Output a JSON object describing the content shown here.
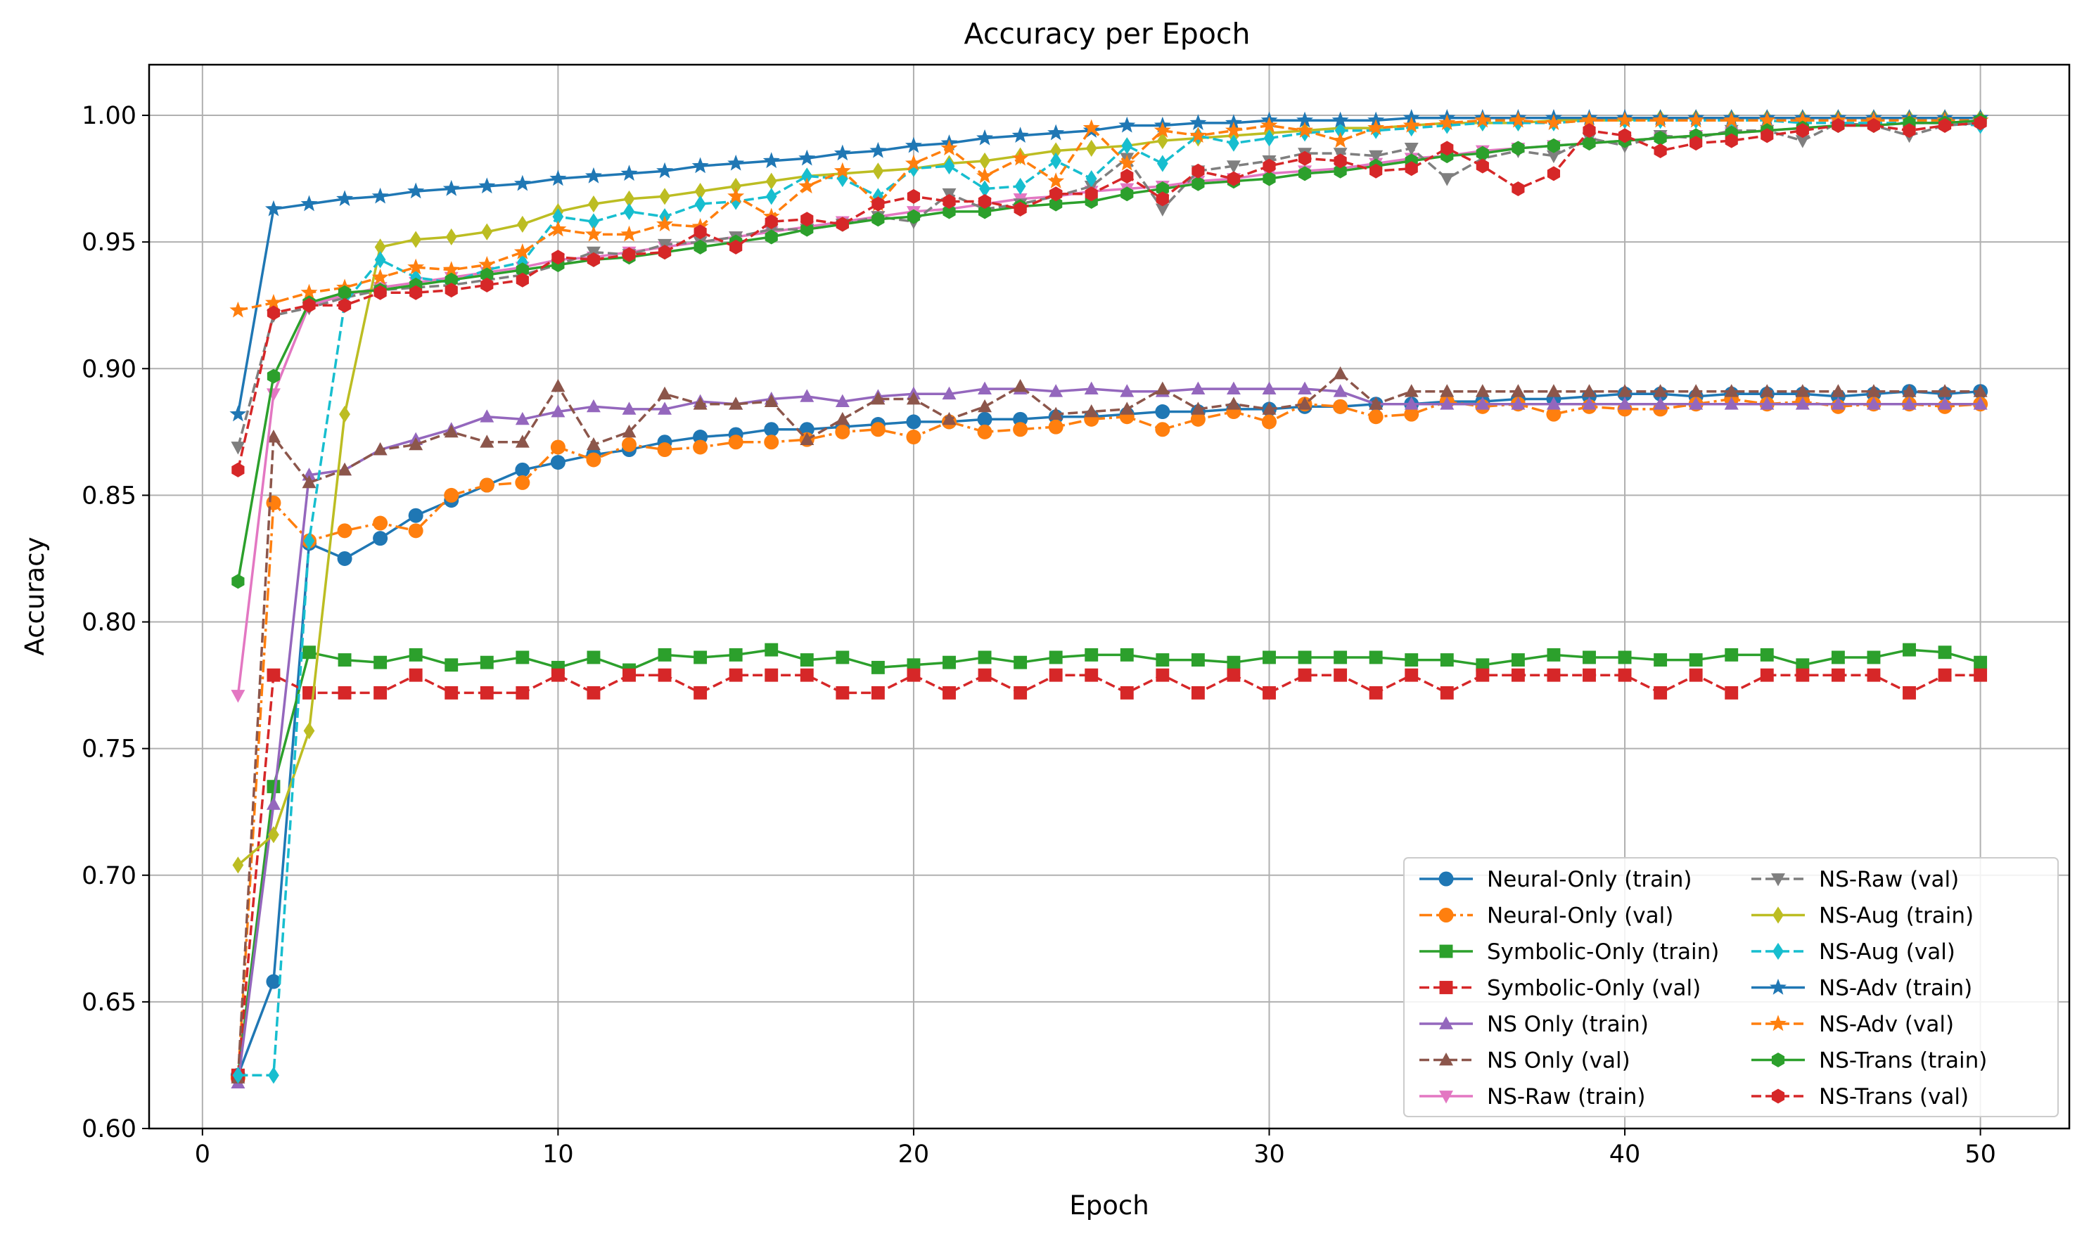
{
  "chart_data": {
    "type": "line",
    "title": "Accuracy per Epoch",
    "xlabel": "Epoch",
    "ylabel": "Accuracy",
    "xlim": [
      -1.5,
      52.5
    ],
    "ylim": [
      0.6,
      1.02
    ],
    "xticks": [
      0,
      10,
      20,
      30,
      40,
      50
    ],
    "xtick_labels": [
      "0",
      "10",
      "20",
      "30",
      "40",
      "50"
    ],
    "yticks": [
      0.6,
      0.65,
      0.7,
      0.75,
      0.8,
      0.85,
      0.9,
      0.95,
      1.0
    ],
    "ytick_labels": [
      "0.60",
      "0.65",
      "0.70",
      "0.75",
      "0.80",
      "0.85",
      "0.90",
      "0.95",
      "1.00"
    ],
    "grid": true,
    "legend_position": "lower-right",
    "x": [
      1,
      2,
      3,
      4,
      5,
      6,
      7,
      8,
      9,
      10,
      11,
      12,
      13,
      14,
      15,
      16,
      17,
      18,
      19,
      20,
      21,
      22,
      23,
      24,
      25,
      26,
      27,
      28,
      29,
      30,
      31,
      32,
      33,
      34,
      35,
      36,
      37,
      38,
      39,
      40,
      41,
      42,
      43,
      44,
      45,
      46,
      47,
      48,
      49,
      50
    ],
    "series": [
      {
        "name": "Neural-Only (train)",
        "color": "#1f77b4",
        "dash": "solid",
        "marker": "circle",
        "values": [
          0.621,
          0.658,
          0.831,
          0.825,
          0.833,
          0.842,
          0.848,
          0.854,
          0.86,
          0.863,
          0.866,
          0.868,
          0.871,
          0.873,
          0.874,
          0.876,
          0.876,
          0.877,
          0.878,
          0.879,
          0.879,
          0.88,
          0.88,
          0.881,
          0.881,
          0.882,
          0.883,
          0.883,
          0.884,
          0.884,
          0.885,
          0.885,
          0.886,
          0.886,
          0.887,
          0.887,
          0.888,
          0.888,
          0.889,
          0.89,
          0.89,
          0.889,
          0.89,
          0.89,
          0.89,
          0.889,
          0.89,
          0.891,
          0.89,
          0.891
        ]
      },
      {
        "name": "Neural-Only (val)",
        "color": "#ff7f0e",
        "dash": "dashdot",
        "marker": "circle",
        "values": [
          0.62,
          0.847,
          0.832,
          0.836,
          0.839,
          0.836,
          0.85,
          0.854,
          0.855,
          0.869,
          0.864,
          0.87,
          0.868,
          0.869,
          0.871,
          0.871,
          0.872,
          0.875,
          0.876,
          0.873,
          0.879,
          0.875,
          0.876,
          0.877,
          0.88,
          0.881,
          0.876,
          0.88,
          0.883,
          0.879,
          0.886,
          0.885,
          0.881,
          0.882,
          0.887,
          0.885,
          0.886,
          0.882,
          0.885,
          0.884,
          0.884,
          0.886,
          0.888,
          0.886,
          0.887,
          0.885,
          0.886,
          0.886,
          0.885,
          0.886
        ]
      },
      {
        "name": "Symbolic-Only (train)",
        "color": "#2ca02c",
        "dash": "solid",
        "marker": "square",
        "values": [
          0.621,
          0.735,
          0.788,
          0.785,
          0.784,
          0.787,
          0.783,
          0.784,
          0.786,
          0.782,
          0.786,
          0.781,
          0.787,
          0.786,
          0.787,
          0.789,
          0.785,
          0.786,
          0.782,
          0.783,
          0.784,
          0.786,
          0.784,
          0.786,
          0.787,
          0.787,
          0.785,
          0.785,
          0.784,
          0.786,
          0.786,
          0.786,
          0.786,
          0.785,
          0.785,
          0.783,
          0.785,
          0.787,
          0.786,
          0.786,
          0.785,
          0.785,
          0.787,
          0.787,
          0.783,
          0.786,
          0.786,
          0.789,
          0.788,
          0.784
        ]
      },
      {
        "name": "Symbolic-Only (val)",
        "color": "#d62728",
        "dash": "dashed",
        "marker": "square",
        "values": [
          0.621,
          0.779,
          0.772,
          0.772,
          0.772,
          0.779,
          0.772,
          0.772,
          0.772,
          0.779,
          0.772,
          0.779,
          0.779,
          0.772,
          0.779,
          0.779,
          0.779,
          0.772,
          0.772,
          0.779,
          0.772,
          0.779,
          0.772,
          0.779,
          0.779,
          0.772,
          0.779,
          0.772,
          0.779,
          0.772,
          0.779,
          0.779,
          0.772,
          0.779,
          0.772,
          0.779,
          0.779,
          0.779,
          0.779,
          0.779,
          0.772,
          0.779,
          0.772,
          0.779,
          0.779,
          0.779,
          0.779,
          0.772,
          0.779,
          0.779
        ]
      },
      {
        "name": "NS Only (train)",
        "color": "#9467bd",
        "dash": "solid",
        "marker": "triangle-up",
        "values": [
          0.618,
          0.728,
          0.858,
          0.86,
          0.868,
          0.872,
          0.876,
          0.881,
          0.88,
          0.883,
          0.885,
          0.884,
          0.884,
          0.887,
          0.886,
          0.888,
          0.889,
          0.887,
          0.889,
          0.89,
          0.89,
          0.892,
          0.892,
          0.891,
          0.892,
          0.891,
          0.891,
          0.892,
          0.892,
          0.892,
          0.892,
          0.891,
          0.886,
          0.886,
          0.886,
          0.886,
          0.886,
          0.886,
          0.886,
          0.886,
          0.886,
          0.886,
          0.886,
          0.886,
          0.886,
          0.886,
          0.886,
          0.886,
          0.886,
          0.886
        ]
      },
      {
        "name": "NS Only (val)",
        "color": "#8c564b",
        "dash": "dashed",
        "marker": "triangle-up",
        "values": [
          0.62,
          0.873,
          0.855,
          0.86,
          0.868,
          0.87,
          0.875,
          0.871,
          0.871,
          0.893,
          0.87,
          0.875,
          0.89,
          0.886,
          0.886,
          0.887,
          0.872,
          0.88,
          0.888,
          0.888,
          0.88,
          0.885,
          0.893,
          0.882,
          0.883,
          0.884,
          0.892,
          0.884,
          0.886,
          0.884,
          0.886,
          0.898,
          0.886,
          0.891,
          0.891,
          0.891,
          0.891,
          0.891,
          0.891,
          0.891,
          0.891,
          0.891,
          0.891,
          0.891,
          0.891,
          0.891,
          0.891,
          0.891,
          0.891,
          0.891
        ]
      },
      {
        "name": "NS-Raw (train)",
        "color": "#e377c2",
        "dash": "solid",
        "marker": "triangle-down",
        "values": [
          0.771,
          0.89,
          0.925,
          0.929,
          0.932,
          0.934,
          0.936,
          0.938,
          0.94,
          0.943,
          0.944,
          0.946,
          0.948,
          0.95,
          0.952,
          0.954,
          0.956,
          0.958,
          0.96,
          0.962,
          0.963,
          0.965,
          0.967,
          0.968,
          0.97,
          0.971,
          0.972,
          0.974,
          0.975,
          0.977,
          0.978,
          0.979,
          0.981,
          0.983,
          0.984,
          0.986,
          0.987,
          0.988,
          0.989,
          0.99,
          0.991,
          0.992,
          0.993,
          0.994,
          0.995,
          0.996,
          0.996,
          0.997,
          0.997,
          0.998
        ]
      },
      {
        "name": "NS-Raw (val)",
        "color": "#7f7f7f",
        "dash": "dashed",
        "marker": "triangle-down",
        "values": [
          0.869,
          0.921,
          0.924,
          0.928,
          0.931,
          0.932,
          0.933,
          0.935,
          0.937,
          0.941,
          0.946,
          0.945,
          0.949,
          0.95,
          0.952,
          0.955,
          0.955,
          0.957,
          0.96,
          0.958,
          0.969,
          0.963,
          0.965,
          0.968,
          0.972,
          0.983,
          0.963,
          0.978,
          0.98,
          0.982,
          0.985,
          0.985,
          0.984,
          0.987,
          0.975,
          0.983,
          0.986,
          0.984,
          0.991,
          0.988,
          0.992,
          0.991,
          0.994,
          0.994,
          0.99,
          0.997,
          0.996,
          0.992,
          0.996,
          0.997
        ]
      },
      {
        "name": "NS-Aug (train)",
        "color": "#bcbd22",
        "dash": "solid",
        "marker": "diamond",
        "values": [
          0.704,
          0.716,
          0.757,
          0.882,
          0.948,
          0.951,
          0.952,
          0.954,
          0.957,
          0.962,
          0.965,
          0.967,
          0.968,
          0.97,
          0.972,
          0.974,
          0.976,
          0.977,
          0.978,
          0.979,
          0.981,
          0.982,
          0.984,
          0.986,
          0.987,
          0.988,
          0.99,
          0.991,
          0.992,
          0.993,
          0.994,
          0.995,
          0.995,
          0.996,
          0.997,
          0.997,
          0.997,
          0.998,
          0.998,
          0.998,
          0.999,
          0.999,
          0.999,
          0.999,
          0.999,
          0.999,
          0.999,
          0.999,
          0.999,
          0.999
        ]
      },
      {
        "name": "NS-Aug (val)",
        "color": "#17becf",
        "dash": "dashed",
        "marker": "diamond",
        "values": [
          0.621,
          0.621,
          0.832,
          0.926,
          0.943,
          0.936,
          0.934,
          0.939,
          0.942,
          0.96,
          0.958,
          0.962,
          0.96,
          0.965,
          0.966,
          0.968,
          0.976,
          0.975,
          0.968,
          0.979,
          0.98,
          0.971,
          0.972,
          0.982,
          0.975,
          0.988,
          0.981,
          0.992,
          0.989,
          0.991,
          0.993,
          0.994,
          0.994,
          0.995,
          0.996,
          0.997,
          0.997,
          0.997,
          0.998,
          0.998,
          0.998,
          0.998,
          0.998,
          0.998,
          0.997,
          0.997,
          0.997,
          0.997,
          0.997,
          0.996
        ]
      },
      {
        "name": "NS-Adv (train)",
        "color": "#1f77b4",
        "dash": "solid",
        "marker": "star",
        "values": [
          0.882,
          0.963,
          0.965,
          0.967,
          0.968,
          0.97,
          0.971,
          0.972,
          0.973,
          0.975,
          0.976,
          0.977,
          0.978,
          0.98,
          0.981,
          0.982,
          0.983,
          0.985,
          0.986,
          0.988,
          0.989,
          0.991,
          0.992,
          0.993,
          0.994,
          0.996,
          0.996,
          0.997,
          0.997,
          0.998,
          0.998,
          0.998,
          0.998,
          0.999,
          0.999,
          0.999,
          0.999,
          0.999,
          0.999,
          0.999,
          0.999,
          0.999,
          0.999,
          0.999,
          0.999,
          0.999,
          0.999,
          0.999,
          0.999,
          0.999
        ]
      },
      {
        "name": "NS-Adv (val)",
        "color": "#ff7f0e",
        "dash": "dashed",
        "marker": "star",
        "values": [
          0.923,
          0.926,
          0.93,
          0.932,
          0.936,
          0.94,
          0.939,
          0.941,
          0.946,
          0.955,
          0.953,
          0.953,
          0.957,
          0.956,
          0.968,
          0.96,
          0.972,
          0.978,
          0.965,
          0.981,
          0.987,
          0.976,
          0.983,
          0.974,
          0.995,
          0.981,
          0.994,
          0.992,
          0.994,
          0.996,
          0.994,
          0.99,
          0.995,
          0.996,
          0.997,
          0.998,
          0.998,
          0.997,
          0.998,
          0.998,
          0.998,
          0.998,
          0.998,
          0.998,
          0.998,
          0.998,
          0.998,
          0.998,
          0.998,
          0.998
        ]
      },
      {
        "name": "NS-Trans (train)",
        "color": "#2ca02c",
        "dash": "solid",
        "marker": "hexagon",
        "values": [
          0.816,
          0.897,
          0.926,
          0.93,
          0.931,
          0.933,
          0.935,
          0.937,
          0.939,
          0.941,
          0.943,
          0.944,
          0.946,
          0.948,
          0.95,
          0.952,
          0.955,
          0.957,
          0.959,
          0.96,
          0.962,
          0.962,
          0.964,
          0.965,
          0.966,
          0.969,
          0.971,
          0.973,
          0.974,
          0.975,
          0.977,
          0.978,
          0.98,
          0.982,
          0.984,
          0.985,
          0.987,
          0.988,
          0.989,
          0.99,
          0.991,
          0.992,
          0.993,
          0.994,
          0.995,
          0.996,
          0.996,
          0.997,
          0.997,
          0.998
        ]
      },
      {
        "name": "NS-Trans (val)",
        "color": "#d62728",
        "dash": "dashed",
        "marker": "hexagon",
        "values": [
          0.86,
          0.922,
          0.925,
          0.925,
          0.93,
          0.93,
          0.931,
          0.933,
          0.935,
          0.944,
          0.943,
          0.945,
          0.946,
          0.954,
          0.948,
          0.958,
          0.959,
          0.957,
          0.965,
          0.968,
          0.966,
          0.966,
          0.963,
          0.969,
          0.969,
          0.976,
          0.967,
          0.978,
          0.975,
          0.98,
          0.983,
          0.982,
          0.978,
          0.979,
          0.987,
          0.98,
          0.971,
          0.977,
          0.994,
          0.992,
          0.986,
          0.989,
          0.99,
          0.992,
          0.994,
          0.996,
          0.996,
          0.994,
          0.996,
          0.997
        ]
      }
    ]
  }
}
